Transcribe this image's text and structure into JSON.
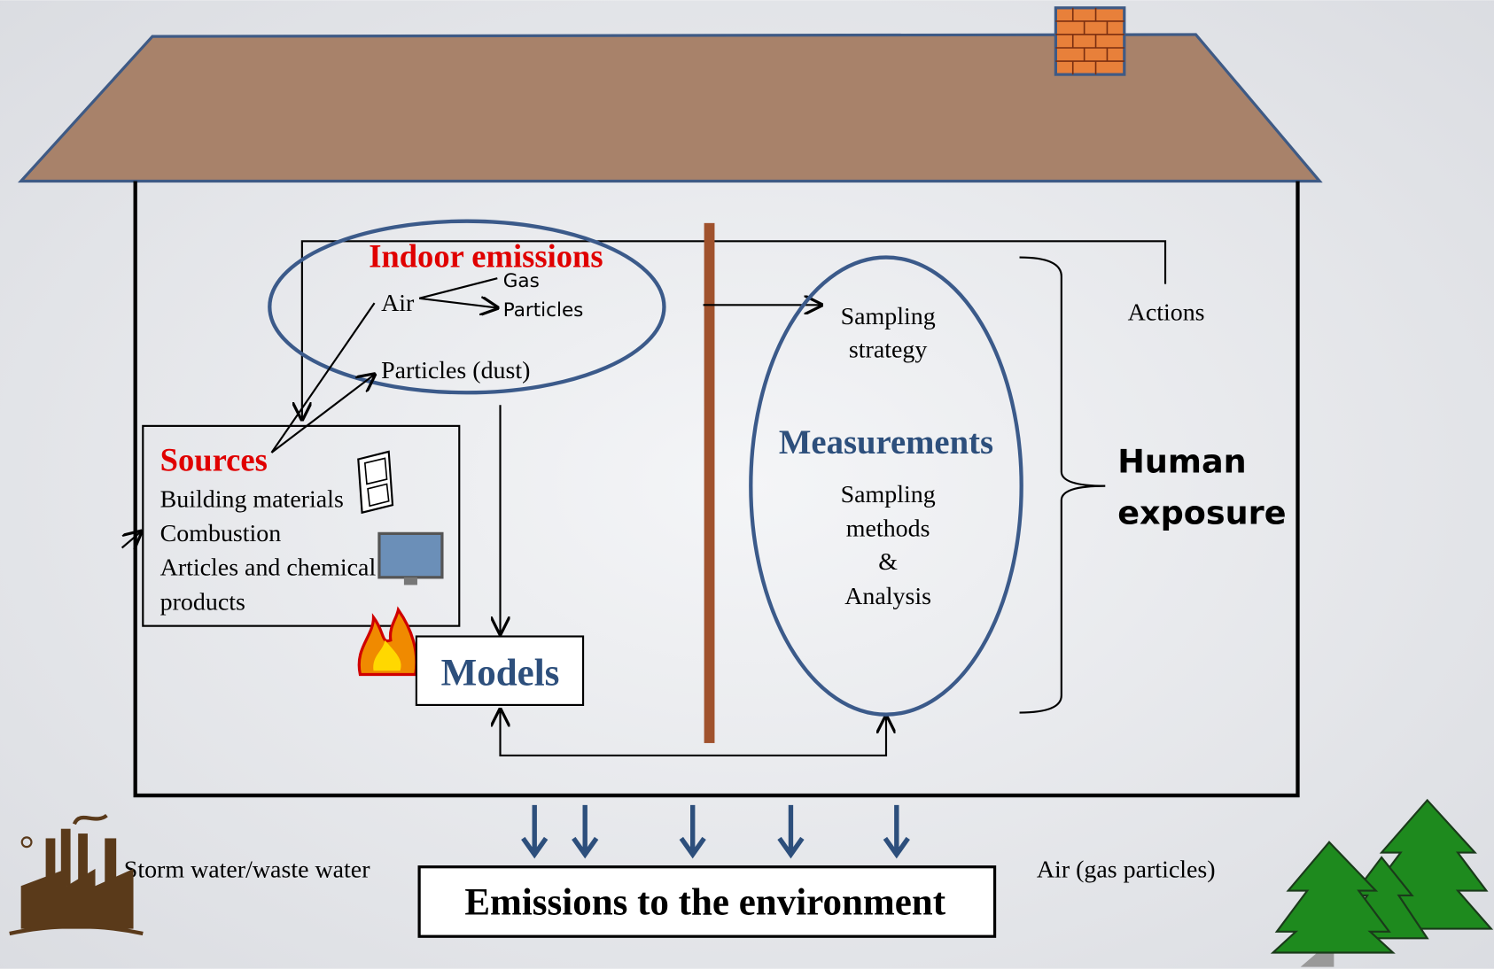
{
  "diagram": {
    "indoor_emissions": {
      "title": "Indoor emissions",
      "air": "Air",
      "gas": "Gas",
      "particles": "Particles",
      "dust": "Particles (dust)"
    },
    "sources": {
      "title": "Sources",
      "items": [
        "Building materials",
        "Combustion",
        "Articles and chemical",
        "products"
      ]
    },
    "models": "Models",
    "sampling_strategy": [
      "Sampling",
      "strategy"
    ],
    "measurements": {
      "title": "Measurements",
      "lines": [
        "Sampling",
        "methods",
        "&",
        "Analysis"
      ]
    },
    "actions": "Actions",
    "human_exposure": [
      "Human",
      "exposure"
    ],
    "storm_water": "Storm water/waste water",
    "emissions_environment": "Emissions to the environment",
    "air_gas_particles": "Air (gas particles)"
  }
}
